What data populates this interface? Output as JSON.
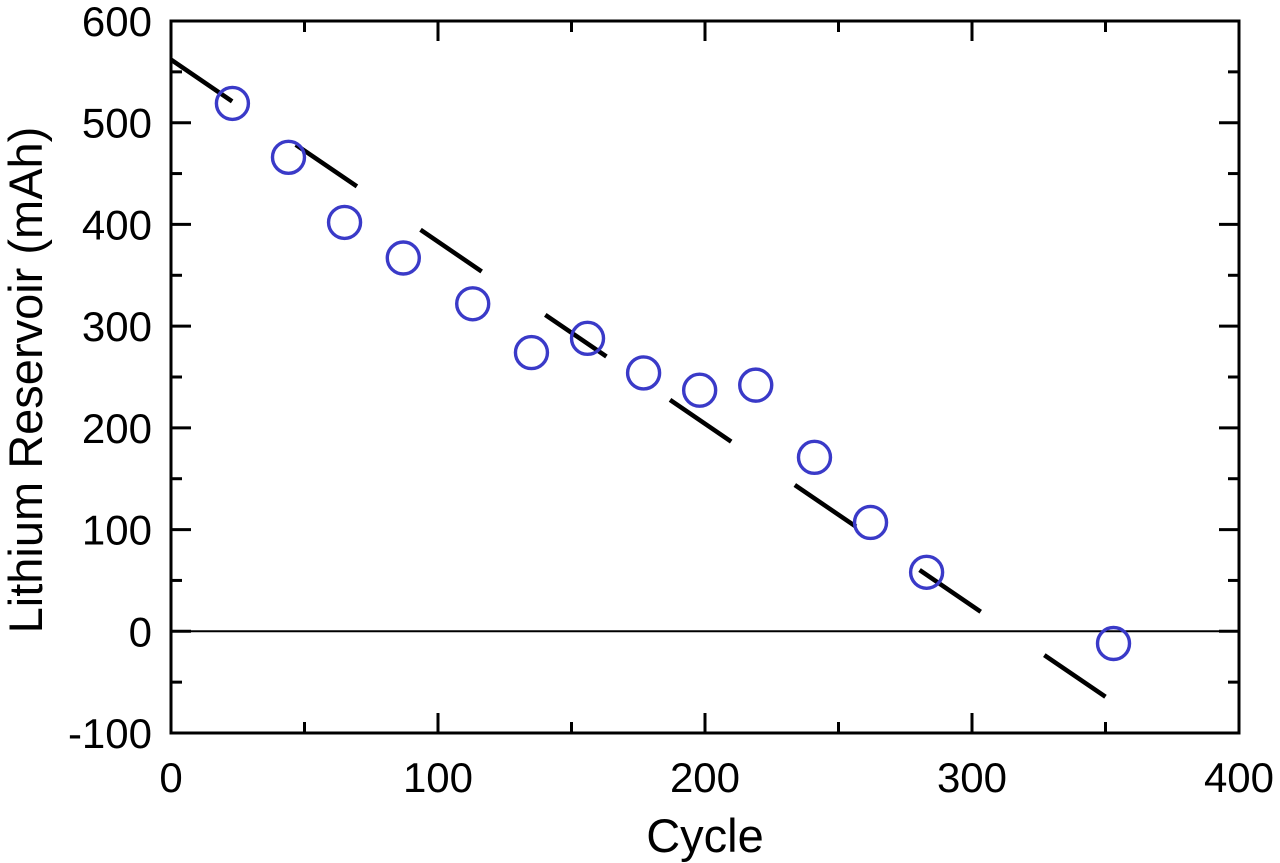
{
  "figure": {
    "background_color": "#ffffff",
    "frame_color": "#000000"
  },
  "chart_data": {
    "type": "scatter",
    "title": "",
    "xlabel": "Cycle",
    "ylabel": "Lithium Reservoir (mAh)",
    "xlim": [
      0,
      400
    ],
    "ylim": [
      -100,
      600
    ],
    "x_major_ticks": [
      0,
      100,
      200,
      300,
      400
    ],
    "x_minor_ticks": [
      50,
      150,
      250,
      350
    ],
    "y_major_ticks": [
      600,
      500,
      400,
      300,
      200,
      100,
      0,
      -100
    ],
    "y_minor_ticks": [
      550,
      450,
      350,
      250,
      150,
      50,
      -50
    ],
    "grid": false,
    "zero_line": true,
    "legend": "none",
    "series": [
      {
        "name": "lithium-reservoir-capacity",
        "type": "scatter",
        "marker": "open-circle",
        "color": "#3a3ac8",
        "points": [
          [
            23,
            519
          ],
          [
            44,
            466
          ],
          [
            65,
            402
          ],
          [
            87,
            367
          ],
          [
            113,
            322
          ],
          [
            135,
            274
          ],
          [
            156,
            288
          ],
          [
            177,
            254
          ],
          [
            198,
            237
          ],
          [
            219,
            242
          ],
          [
            241,
            171
          ],
          [
            262,
            107
          ],
          [
            283,
            58
          ],
          [
            353,
            -12
          ]
        ]
      },
      {
        "name": "linear-extrapolation",
        "type": "dashed-line",
        "color": "#000000",
        "start": [
          0,
          562
        ],
        "end": [
          352,
          -68
        ]
      }
    ]
  }
}
